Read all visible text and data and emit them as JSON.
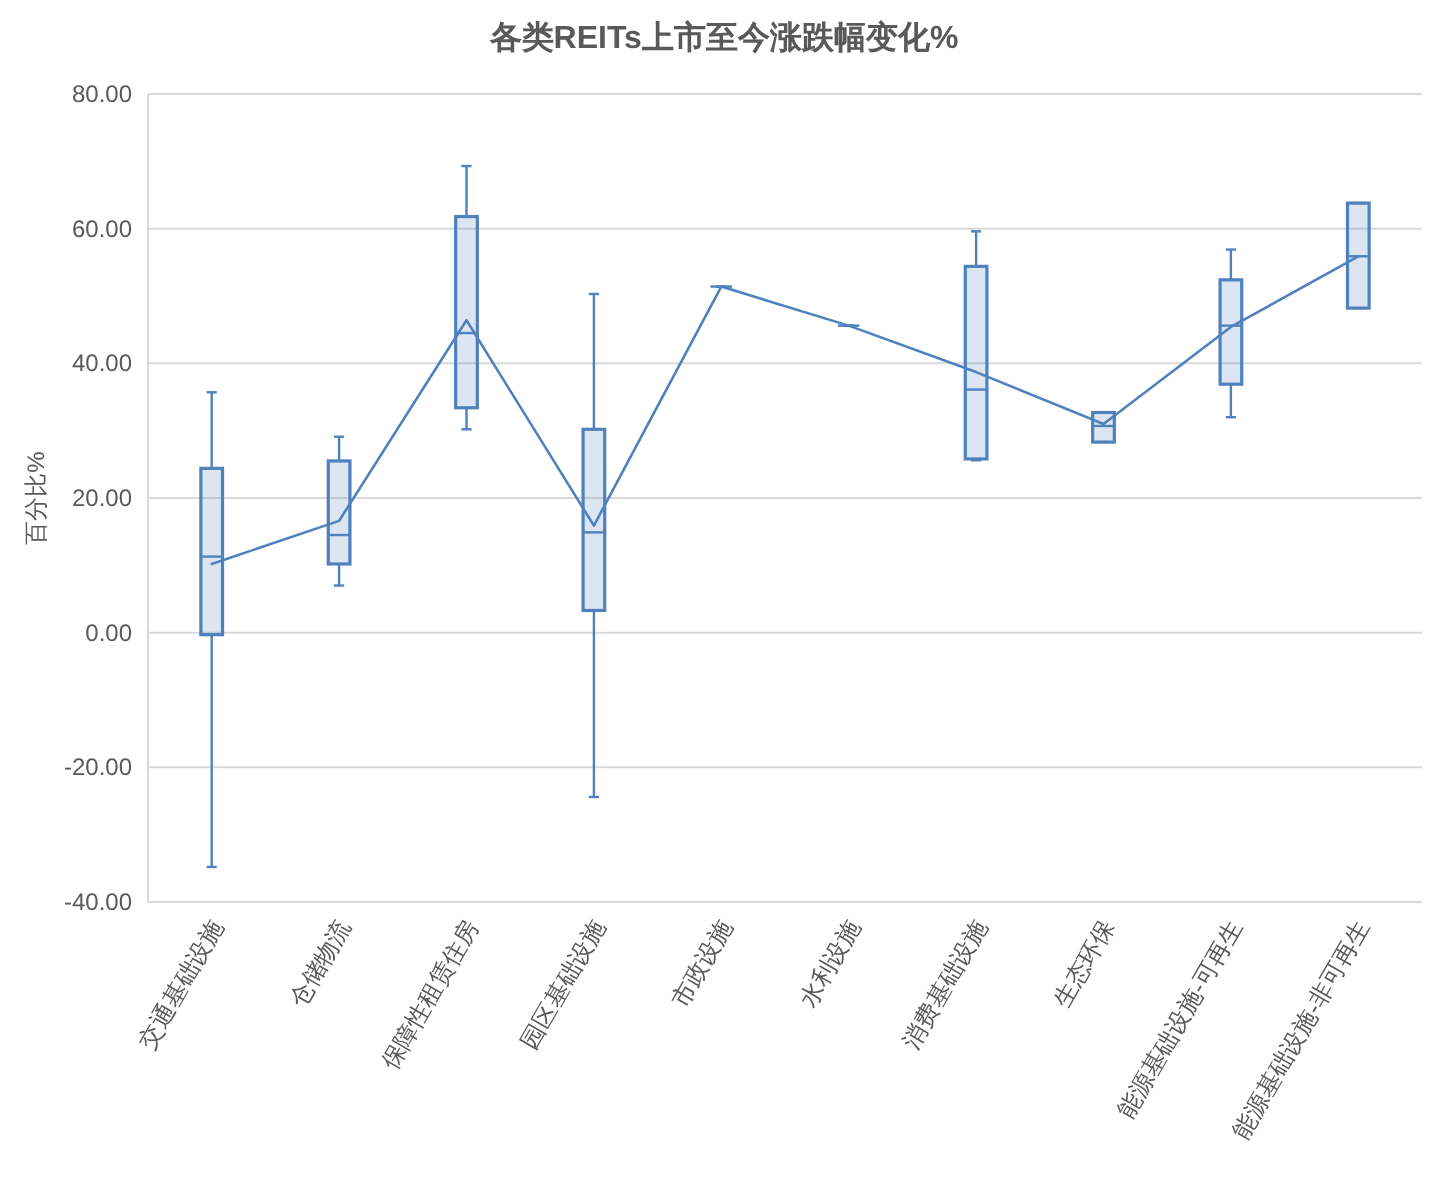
{
  "chart_data": {
    "type": "box",
    "title": "各类REITs上市至今涨跌幅变化%",
    "ylabel": "百分比%",
    "categories": [
      "交通基础设施",
      "仓储物流",
      "保障性租赁住房",
      "园区基础设施",
      "市政设施",
      "水利设施",
      "消费基础设施",
      "生态环保",
      "能源基础设施-可再生",
      "能源基础设施-非可再生"
    ],
    "series": [
      {
        "color": "#4f81bd",
        "boxes": [
          {
            "low": -34.8,
            "q1": -0.3,
            "median": 11.3,
            "q3": 24.4,
            "high": 35.7
          },
          {
            "low": 7.0,
            "q1": 10.2,
            "median": 14.5,
            "q3": 25.5,
            "high": 29.1
          },
          {
            "low": 30.2,
            "q1": 33.4,
            "median": 44.5,
            "q3": 61.8,
            "high": 69.3
          },
          {
            "low": -24.4,
            "q1": 3.3,
            "median": 14.9,
            "q3": 30.2,
            "high": 50.3
          },
          {
            "low": 51.4,
            "q1": 51.4,
            "median": 51.4,
            "q3": 51.4,
            "high": 51.4
          },
          {
            "low": 45.6,
            "q1": 45.6,
            "median": 45.6,
            "q3": 45.6,
            "high": 45.6
          },
          {
            "low": 25.6,
            "q1": 25.8,
            "median": 36.1,
            "q3": 54.4,
            "high": 59.6
          },
          {
            "low": 28.3,
            "q1": 28.3,
            "median": 30.7,
            "q3": 32.7,
            "high": 32.7
          },
          {
            "low": 32.0,
            "q1": 36.9,
            "median": 45.6,
            "q3": 52.4,
            "high": 56.9
          },
          {
            "low": 48.2,
            "q1": 48.2,
            "median": 55.9,
            "q3": 63.8,
            "high": 63.8
          }
        ]
      },
      {
        "type": "line",
        "color": "#4f81bd",
        "values": [
          10.2,
          16.6,
          46.4,
          15.9,
          51.4,
          45.6,
          38.7,
          31.0,
          45.4,
          55.9
        ]
      }
    ],
    "ylim": [
      -40,
      80
    ],
    "yticks": [
      {
        "value": -40,
        "label": "-40.00"
      },
      {
        "value": -20,
        "label": "-20.00"
      },
      {
        "value": 0,
        "label": "0.00"
      },
      {
        "value": 20,
        "label": "20.00"
      },
      {
        "value": 40,
        "label": "40.00"
      },
      {
        "value": 60,
        "label": "60.00"
      },
      {
        "value": 80,
        "label": "80.00"
      }
    ],
    "grid": "y"
  }
}
